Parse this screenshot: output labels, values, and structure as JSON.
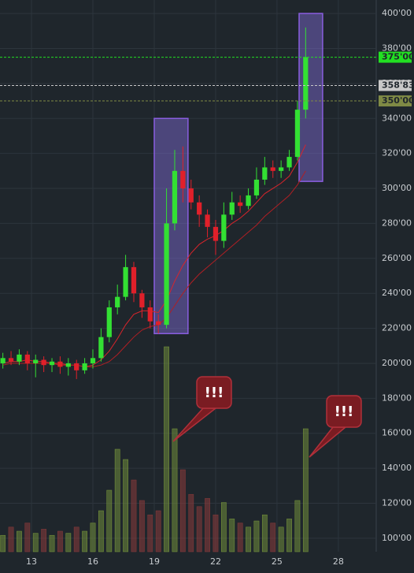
{
  "chart_data": {
    "type": "candlestick",
    "x": [
      11.6,
      12.0,
      12.4,
      12.8,
      13.2,
      13.6,
      14.0,
      14.4,
      14.8,
      15.2,
      15.6,
      16.0,
      16.4,
      16.8,
      17.2,
      17.6,
      18.0,
      18.4,
      18.8,
      19.2,
      19.6,
      20.0,
      20.4,
      20.8,
      21.2,
      21.6,
      22.0,
      22.4,
      22.8,
      23.2,
      23.6,
      24.0,
      24.4,
      24.8,
      25.2,
      25.6,
      26.0,
      26.4
    ],
    "open": [
      200,
      203,
      201,
      205,
      200,
      202,
      199,
      201,
      198,
      200,
      196,
      200,
      203,
      215,
      232,
      238,
      255,
      240,
      232,
      224,
      222,
      280,
      310,
      300,
      292,
      285,
      278,
      270,
      285,
      292,
      290,
      296,
      305,
      312,
      310,
      312,
      318,
      345
    ],
    "high": [
      206,
      207,
      208,
      207,
      205,
      204,
      203,
      204,
      203,
      202,
      203,
      208,
      220,
      236,
      245,
      262,
      258,
      242,
      236,
      228,
      300,
      322,
      324,
      305,
      296,
      288,
      282,
      292,
      298,
      296,
      300,
      312,
      318,
      316,
      316,
      322,
      350,
      392
    ],
    "low": [
      197,
      199,
      199,
      196,
      192,
      195,
      195,
      194,
      193,
      191,
      194,
      197,
      201,
      212,
      228,
      236,
      235,
      226,
      220,
      217,
      220,
      276,
      292,
      288,
      278,
      272,
      262,
      266,
      282,
      286,
      288,
      294,
      302,
      306,
      306,
      310,
      316,
      340
    ],
    "close": [
      203,
      201,
      205,
      200,
      202,
      199,
      201,
      198,
      200,
      196,
      200,
      203,
      215,
      232,
      238,
      255,
      240,
      232,
      224,
      222,
      280,
      310,
      300,
      292,
      285,
      278,
      270,
      285,
      292,
      290,
      296,
      305,
      312,
      310,
      312,
      318,
      345,
      375
    ],
    "volume": [
      8,
      12,
      10,
      14,
      9,
      11,
      8,
      10,
      9,
      12,
      10,
      14,
      20,
      30,
      50,
      45,
      35,
      25,
      18,
      20,
      100,
      60,
      40,
      28,
      22,
      26,
      18,
      24,
      16,
      14,
      12,
      15,
      18,
      14,
      12,
      16,
      25,
      60
    ],
    "moving_averages": [
      {
        "color": "#d9242b",
        "values": [
          200,
          201,
          201,
          202,
          201,
          201,
          200,
          200,
          199,
          199,
          198,
          199,
          202,
          207,
          214,
          222,
          228,
          230,
          230,
          229,
          236,
          247,
          256,
          263,
          268,
          271,
          273,
          276,
          280,
          283,
          287,
          292,
          297,
          300,
          303,
          307,
          315,
          325
        ]
      },
      {
        "color": "#b01f24",
        "values": [
          199,
          200,
          200,
          200,
          200,
          200,
          200,
          199,
          199,
          199,
          198,
          198,
          199,
          201,
          205,
          210,
          215,
          219,
          221,
          222,
          226,
          233,
          240,
          246,
          251,
          255,
          259,
          263,
          267,
          271,
          275,
          279,
          284,
          288,
          292,
          296,
          302,
          310
        ]
      }
    ],
    "up_color": "#33e033",
    "down_color": "#e0202a",
    "xlim": [
      11.46,
      29.85
    ],
    "ylim": [
      92.3,
      407.7
    ],
    "xticks": [
      13,
      16,
      19,
      22,
      25,
      28
    ],
    "yticks": [
      {
        "value": 100,
        "label": "100'00"
      },
      {
        "value": 120,
        "label": "120'00"
      },
      {
        "value": 140,
        "label": "140'00"
      },
      {
        "value": 160,
        "label": "160'00"
      },
      {
        "value": 180,
        "label": "180'00"
      },
      {
        "value": 200,
        "label": "200'00"
      },
      {
        "value": 220,
        "label": "220'00"
      },
      {
        "value": 240,
        "label": "240'00"
      },
      {
        "value": 260,
        "label": "260'00"
      },
      {
        "value": 280,
        "label": "280'00"
      },
      {
        "value": 300,
        "label": "300'00"
      },
      {
        "value": 320,
        "label": "320'00"
      },
      {
        "value": 340,
        "label": "340'00"
      },
      {
        "value": 360,
        "label": "360'00"
      },
      {
        "value": 380,
        "label": "380'00"
      },
      {
        "value": 400,
        "label": "400'00"
      }
    ],
    "grid": true,
    "hlines": [
      {
        "value": 375,
        "label": "375'00",
        "color": "#22e022"
      },
      {
        "value": 358.83,
        "label": "358'83",
        "color": "#c8c8c8"
      },
      {
        "value": 350,
        "label": "350'00",
        "color": "#7f8a45"
      }
    ],
    "highlights": [
      {
        "x": [
          19.0,
          20.65
        ],
        "y": [
          217,
          340
        ]
      },
      {
        "x": [
          26.08,
          27.23
        ],
        "y": [
          304,
          400
        ]
      }
    ],
    "annotations": [
      "!!!",
      "!!!"
    ]
  }
}
